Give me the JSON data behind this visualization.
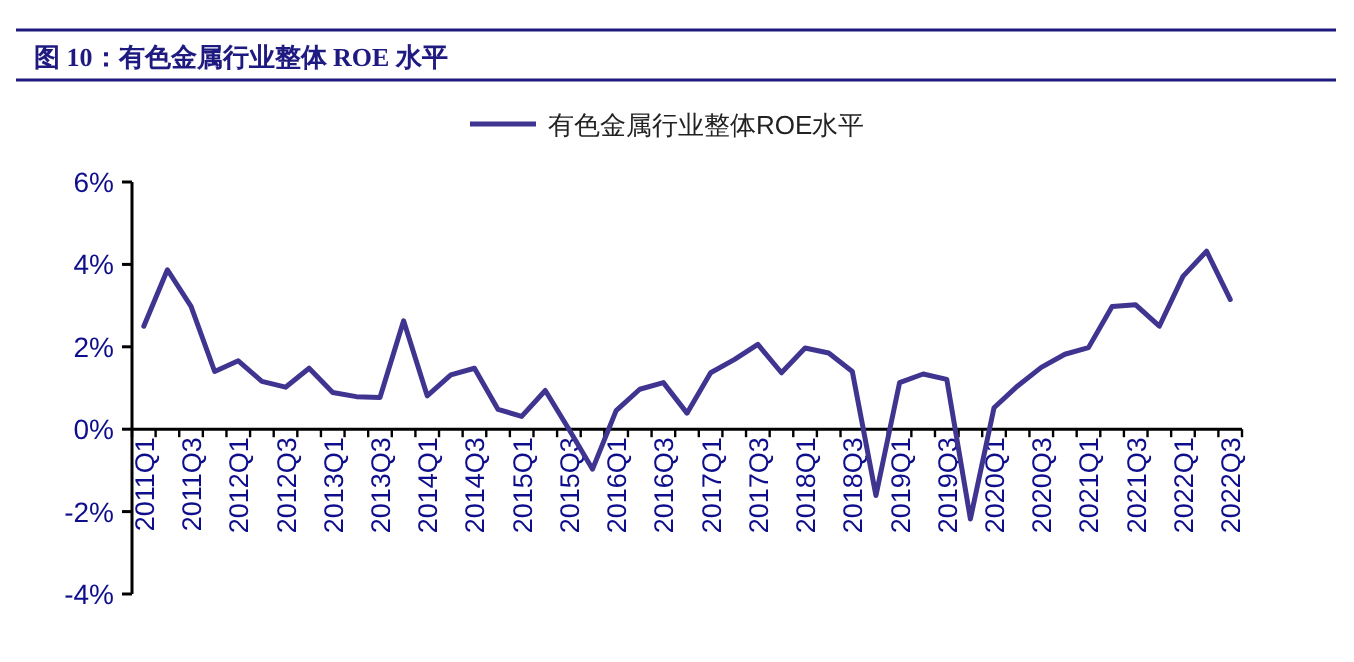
{
  "chart_data": {
    "type": "line",
    "title": "图 10：有色金属行业整体 ROE 水平",
    "categories": [
      "2011Q1",
      null,
      "2011Q3",
      null,
      "2012Q1",
      null,
      "2012Q3",
      null,
      "2013Q1",
      null,
      "2013Q3",
      null,
      "2014Q1",
      null,
      "2014Q3",
      null,
      "2015Q1",
      null,
      "2015Q3",
      null,
      "2016Q1",
      null,
      "2016Q3",
      null,
      "2017Q1",
      null,
      "2017Q3",
      null,
      "2018Q1",
      null,
      "2018Q3",
      null,
      "2019Q1",
      null,
      "2019Q3",
      null,
      "2020Q1",
      null,
      "2020Q3",
      null,
      "2021Q1",
      null,
      "2021Q3",
      null,
      "2022Q1",
      null,
      "2022Q3"
    ],
    "series": [
      {
        "name": "有色金属行业整体ROE水平",
        "color": "#3f3590",
        "values": [
          2.5,
          3.87,
          2.98,
          1.4,
          1.66,
          1.16,
          1.02,
          1.48,
          0.89,
          0.79,
          0.77,
          2.63,
          0.81,
          1.32,
          1.48,
          0.48,
          0.31,
          0.94,
          0.0,
          -0.97,
          0.45,
          0.97,
          1.13,
          0.39,
          1.37,
          1.69,
          2.06,
          1.37,
          1.97,
          1.85,
          1.4,
          -1.61,
          1.13,
          1.34,
          1.21,
          -2.18,
          0.52,
          1.05,
          1.5,
          1.82,
          1.98,
          2.98,
          3.02,
          2.5,
          3.71,
          4.32,
          3.15
        ]
      }
    ],
    "ylim": [
      -4,
      6
    ],
    "yticks": [
      {
        "value": -4,
        "label": "-4%"
      },
      {
        "value": -2,
        "label": "-2%"
      },
      {
        "value": 0,
        "label": "0%"
      },
      {
        "value": 2,
        "label": "2%"
      },
      {
        "value": 4,
        "label": "4%"
      },
      {
        "value": 6,
        "label": "6%"
      }
    ],
    "grid": false,
    "legend": "top",
    "marker": "none",
    "line_style": "solid"
  }
}
